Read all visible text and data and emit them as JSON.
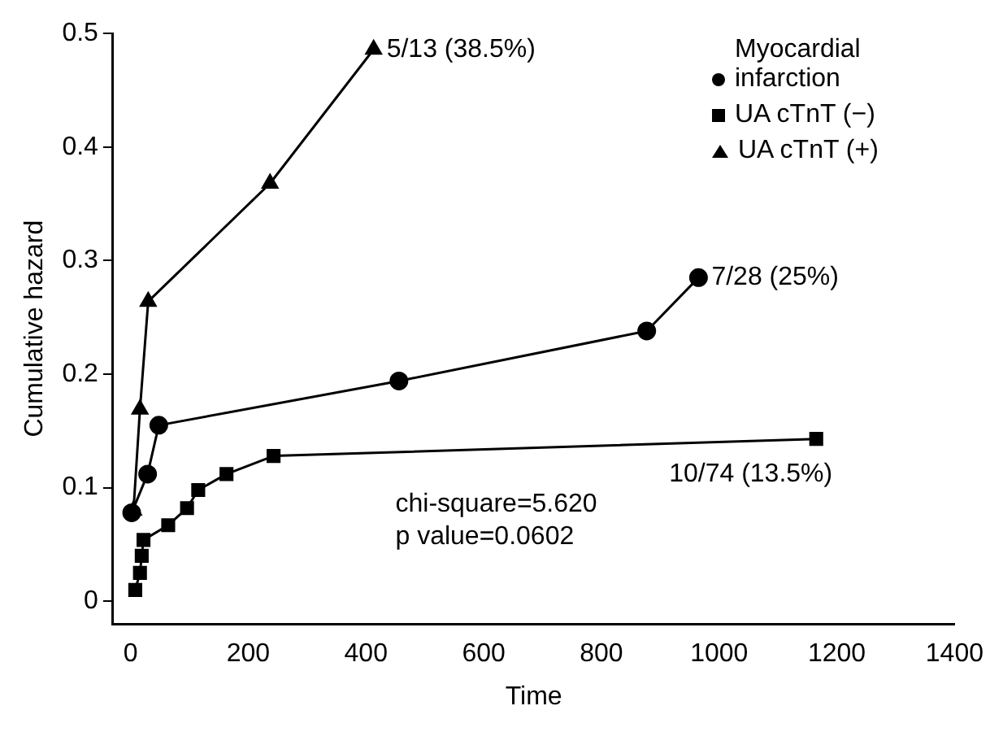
{
  "chart_data": {
    "type": "line",
    "xlabel": "Time",
    "ylabel": "Cumulative hazard",
    "xlim": [
      -30,
      1400
    ],
    "xticks": [
      0,
      200,
      400,
      600,
      800,
      1000,
      1200,
      1400
    ],
    "ylim": [
      -0.02,
      0.5
    ],
    "yticks": [
      0,
      0.1,
      0.2,
      0.3,
      0.4,
      0.5
    ],
    "grid": false,
    "legend": "top right",
    "line_style": "solid",
    "series": [
      {
        "name": "Myocardial infarction",
        "color": "#000000",
        "marker": "circle",
        "x": [
          2,
          29,
          48,
          456,
          877,
          965
        ],
        "values": [
          0.078,
          0.112,
          0.155,
          0.194,
          0.238,
          0.285
        ]
      },
      {
        "name": "UA cTnT (−)",
        "color": "#000000",
        "marker": "square",
        "x": [
          8,
          16,
          19,
          22,
          64,
          96,
          115,
          163,
          243,
          1165
        ],
        "values": [
          0.01,
          0.025,
          0.04,
          0.054,
          0.067,
          0.082,
          0.098,
          0.112,
          0.128,
          0.143
        ]
      },
      {
        "name": "UA cTnT (+)",
        "color": "#000000",
        "marker": "triangle",
        "x": [
          5,
          16,
          30,
          237,
          413
        ],
        "values": [
          0.08,
          0.169,
          0.264,
          0.368,
          0.486
        ]
      }
    ],
    "annotations": [
      {
        "text": "5/13 (38.5%)",
        "x": 413,
        "y": 0.486
      },
      {
        "text": "7/28 (25%)",
        "x": 965,
        "y": 0.285
      },
      {
        "text": "10/74 (13.5%)",
        "x": 1165,
        "y": 0.143
      },
      "chi-square=5.620",
      "p value=0.0602"
    ]
  }
}
